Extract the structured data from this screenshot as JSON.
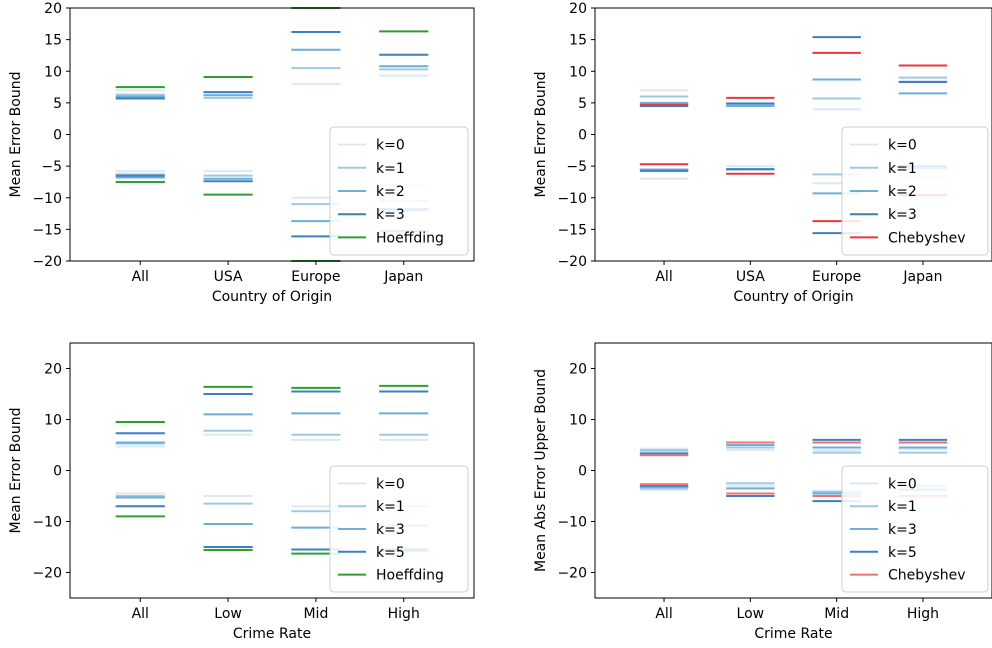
{
  "chart_data": [
    {
      "type": "line",
      "title": "",
      "xlabel": "Country of Origin",
      "ylabel": "Mean Error Bound",
      "categories": [
        "All",
        "USA",
        "Europe",
        "Japan"
      ],
      "ylim": [
        -20,
        20
      ],
      "yticks": [
        -20,
        -15,
        -10,
        -5,
        0,
        5,
        10,
        15,
        20
      ],
      "ytick_labels": [
        "−20",
        "−15",
        "−10",
        "−5",
        "0",
        "5",
        "10",
        "15",
        "20"
      ],
      "grid": false,
      "legend": "lower-right",
      "series": [
        {
          "name": "k=0",
          "color": "#dde8f5",
          "upper": [
            7.0,
            6.3,
            8.0,
            9.3
          ],
          "lower": [
            -5.8,
            -5.8,
            -10.0,
            -8.0
          ]
        },
        {
          "name": "k=1",
          "color": "#9ecae1",
          "upper": [
            6.3,
            5.8,
            10.5,
            10.3
          ],
          "lower": [
            -6.3,
            -6.5,
            -11.0,
            -10.5
          ]
        },
        {
          "name": "k=2",
          "color": "#6baed6",
          "upper": [
            6.0,
            6.2,
            13.4,
            10.8
          ],
          "lower": [
            -6.8,
            -7.0,
            -13.7,
            -12.0
          ]
        },
        {
          "name": "k=3",
          "color": "#3f7fbf",
          "upper": [
            5.7,
            6.7,
            16.2,
            12.6
          ],
          "lower": [
            -6.5,
            -7.4,
            -16.1,
            -11.8
          ]
        },
        {
          "name": "Hoeffding",
          "color": "#2ca02c",
          "upper": [
            7.5,
            9.1,
            20.0,
            16.3
          ],
          "lower": [
            -7.5,
            -9.5,
            -20.0,
            -15.3
          ]
        }
      ]
    },
    {
      "type": "line",
      "title": "",
      "xlabel": "Country of Origin",
      "ylabel": "Mean Error Bound",
      "categories": [
        "All",
        "USA",
        "Europe",
        "Japan"
      ],
      "ylim": [
        -20,
        20
      ],
      "yticks": [
        -20,
        -15,
        -10,
        -5,
        0,
        5,
        10,
        15,
        20
      ],
      "ytick_labels": [
        "−20",
        "−15",
        "−10",
        "−5",
        "0",
        "5",
        "10",
        "15",
        "20"
      ],
      "grid": false,
      "legend": "lower-right",
      "series": [
        {
          "name": "k=0",
          "color": "#dde8f5",
          "upper": [
            7.0,
            5.0,
            4.0,
            8.5
          ],
          "lower": [
            -7.0,
            -5.0,
            -7.7,
            -6.7
          ]
        },
        {
          "name": "k=1",
          "color": "#9ecae1",
          "upper": [
            6.0,
            4.7,
            5.7,
            9.0
          ],
          "lower": [
            -5.5,
            -5.5,
            -6.3,
            -5.0
          ]
        },
        {
          "name": "k=2",
          "color": "#6baed6",
          "upper": [
            5.0,
            4.5,
            8.7,
            6.5
          ],
          "lower": [
            -5.8,
            -5.5,
            -9.3,
            -5.3
          ]
        },
        {
          "name": "k=3",
          "color": "#3f7fbf",
          "upper": [
            4.5,
            4.9,
            15.4,
            8.3
          ],
          "lower": [
            -5.7,
            -5.5,
            -15.6,
            -5.0
          ]
        },
        {
          "name": "Chebyshev",
          "color": "#e8383a",
          "upper": [
            4.7,
            5.8,
            12.9,
            10.9
          ],
          "lower": [
            -4.7,
            -6.2,
            -13.7,
            -9.6
          ]
        }
      ]
    },
    {
      "type": "line",
      "title": "",
      "xlabel": "Crime Rate",
      "ylabel": "Mean Error Bound",
      "categories": [
        "All",
        "Low",
        "Mid",
        "High"
      ],
      "ylim": [
        -25,
        25
      ],
      "yticks": [
        -20,
        -10,
        0,
        10,
        20
      ],
      "ytick_labels": [
        "−20",
        "−10",
        "0",
        "10",
        "20"
      ],
      "grid": false,
      "legend": "lower-right",
      "series": [
        {
          "name": "k=0",
          "color": "#dde8f5",
          "upper": [
            4.7,
            7.0,
            6.0,
            6.0
          ],
          "lower": [
            -4.5,
            -5.0,
            -7.0,
            -5.5
          ]
        },
        {
          "name": "k=1",
          "color": "#9ecae1",
          "upper": [
            5.3,
            7.8,
            7.0,
            7.0
          ],
          "lower": [
            -5.0,
            -6.5,
            -8.0,
            -7.0
          ]
        },
        {
          "name": "k=3",
          "color": "#6baed6",
          "upper": [
            5.5,
            11.0,
            11.2,
            11.2
          ],
          "lower": [
            -5.3,
            -10.5,
            -11.2,
            -10.8
          ]
        },
        {
          "name": "k=5",
          "color": "#3f7fbf",
          "upper": [
            7.3,
            15.0,
            15.5,
            15.5
          ],
          "lower": [
            -7.0,
            -15.0,
            -15.5,
            -15.5
          ]
        },
        {
          "name": "Hoeffding",
          "color": "#2ca02c",
          "upper": [
            9.5,
            16.4,
            16.2,
            16.6
          ],
          "lower": [
            -9.0,
            -15.6,
            -16.3,
            -15.7
          ]
        }
      ]
    },
    {
      "type": "line",
      "title": "",
      "xlabel": "Crime Rate",
      "ylabel": "Mean Abs Error Upper Bound",
      "categories": [
        "All",
        "Low",
        "Mid",
        "High"
      ],
      "ylim": [
        -25,
        25
      ],
      "yticks": [
        -20,
        -10,
        0,
        10,
        20
      ],
      "ytick_labels": [
        "−20",
        "−10",
        "0",
        "10",
        "20"
      ],
      "grid": false,
      "legend": "lower-right",
      "series": [
        {
          "name": "k=0",
          "color": "#dde8f5",
          "upper": [
            4.3,
            4.0,
            4.0,
            4.2
          ],
          "lower": [
            -3.8,
            -3.0,
            -4.0,
            -3.5
          ]
        },
        {
          "name": "k=1",
          "color": "#9ecae1",
          "upper": [
            4.0,
            4.5,
            3.5,
            3.5
          ],
          "lower": [
            -3.5,
            -2.5,
            -4.2,
            -3.0
          ]
        },
        {
          "name": "k=3",
          "color": "#6baed6",
          "upper": [
            3.5,
            5.0,
            4.5,
            4.5
          ],
          "lower": [
            -3.2,
            -3.5,
            -4.5,
            -3.8
          ]
        },
        {
          "name": "k=5",
          "color": "#3f7fbf",
          "upper": [
            3.2,
            5.5,
            6.0,
            6.0
          ],
          "lower": [
            -3.0,
            -5.0,
            -6.0,
            -5.0
          ]
        },
        {
          "name": "Chebyshev",
          "color": "#f07070",
          "upper": [
            3.0,
            5.5,
            5.5,
            5.5
          ],
          "lower": [
            -2.7,
            -4.5,
            -5.0,
            -5.0
          ]
        }
      ]
    }
  ]
}
